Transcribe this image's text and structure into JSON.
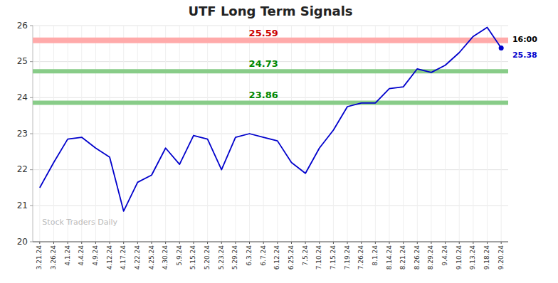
{
  "chart_data": {
    "type": "line",
    "title": "UTF Long Term Signals",
    "categories": [
      "3.21.24",
      "3.26.24",
      "4.1.24",
      "4.4.24",
      "4.9.24",
      "4.12.24",
      "4.17.24",
      "4.22.24",
      "4.25.24",
      "4.30.24",
      "5.9.24",
      "5.15.24",
      "5.20.24",
      "5.23.24",
      "5.29.24",
      "6.3.24",
      "6.7.24",
      "6.12.24",
      "6.25.24",
      "7.5.24",
      "7.10.24",
      "7.15.24",
      "7.19.24",
      "7.26.24",
      "8.1.24",
      "8.14.24",
      "8.21.24",
      "8.26.24",
      "8.29.24",
      "9.4.24",
      "9.10.24",
      "9.13.24",
      "9.18.24",
      "9.20.24"
    ],
    "series": [
      {
        "color": "#0000cc",
        "values": [
          21.5,
          22.2,
          22.85,
          22.9,
          22.6,
          22.35,
          20.85,
          21.65,
          21.85,
          22.6,
          22.15,
          22.95,
          22.85,
          22.0,
          22.9,
          23.0,
          22.9,
          22.8,
          22.2,
          21.9,
          22.6,
          23.1,
          23.75,
          23.85,
          23.85,
          24.25,
          24.3,
          24.8,
          24.7,
          24.9,
          25.25,
          25.7,
          25.95,
          25.38
        ]
      }
    ],
    "reference_lines": [
      {
        "value": 25.59,
        "color": "#ffaaaa",
        "label_color": "#cc0000"
      },
      {
        "value": 24.73,
        "color": "#88cc88",
        "label_color": "#008800"
      },
      {
        "value": 23.86,
        "color": "#88cc88",
        "label_color": "#008800"
      }
    ],
    "annotations": [
      {
        "text": "16:00",
        "color": "#000000"
      },
      {
        "text": "25.38",
        "color": "#0000cc"
      }
    ],
    "watermark": "Stock Traders Daily",
    "ylim": [
      20,
      26
    ],
    "yticks": [
      20,
      21,
      22,
      23,
      24,
      25,
      26
    ],
    "grid": true
  }
}
